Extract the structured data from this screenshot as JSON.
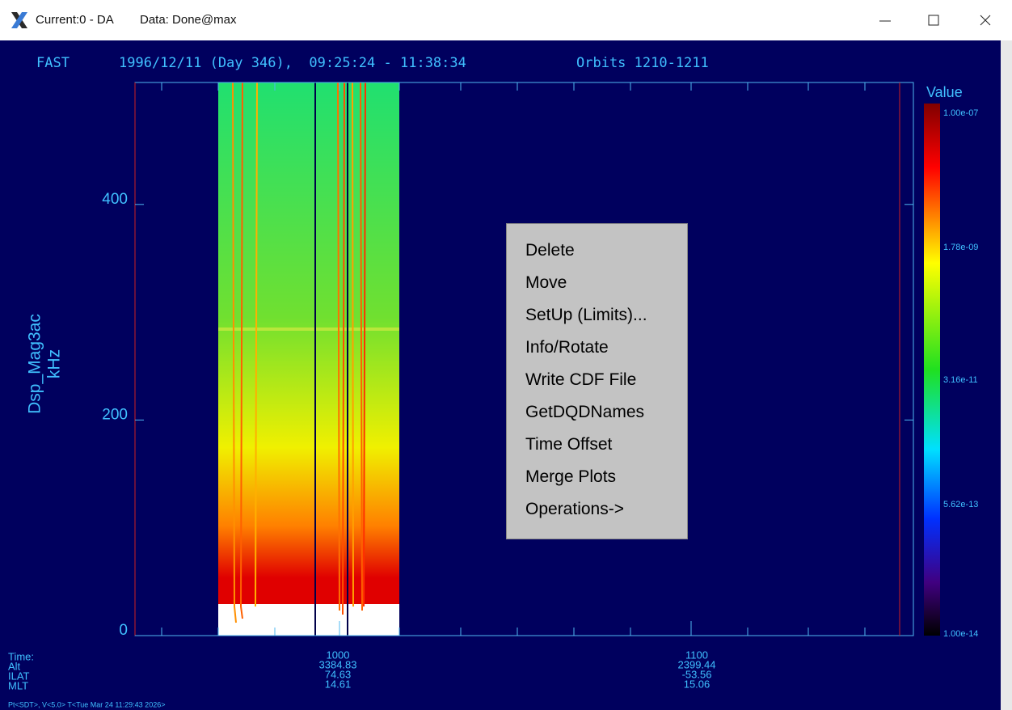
{
  "window": {
    "app": "Current:0 - DA",
    "status": "Data: Done@max"
  },
  "plot": {
    "header": {
      "mission": "FAST",
      "range": "1996/12/11 (Day 346),  09:25:24 - 11:38:34",
      "orbits": "Orbits 1210-1211"
    },
    "y_label": "Dsp_Mag3ac",
    "y_unit": "kHz",
    "yticks": [
      0,
      200,
      400
    ],
    "colorbar": {
      "title": "Value",
      "labels": [
        "1.00e-07",
        "1.78e-09",
        "3.16e-11",
        "5.62e-13",
        "1.00e-14"
      ]
    },
    "x_rows": [
      "Time:",
      "Alt",
      "ILAT",
      "MLT"
    ],
    "x_columns": [
      {
        "values": [
          "1000",
          "3384.83",
          "74.63",
          "14.61"
        ]
      },
      {
        "values": [
          "1100",
          "2399.44",
          "-53.56",
          "15.06"
        ]
      }
    ],
    "status": "Pt<SDT>, V<5.0> T<Tue Mar 24 11:29:43 2026>"
  },
  "context_menu": {
    "items": [
      "Delete",
      "Move",
      "SetUp (Limits)...",
      "Info/Rotate",
      "Write CDF File",
      "GetDQDNames",
      "Time Offset",
      "Merge Plots",
      "Operations->"
    ]
  }
}
